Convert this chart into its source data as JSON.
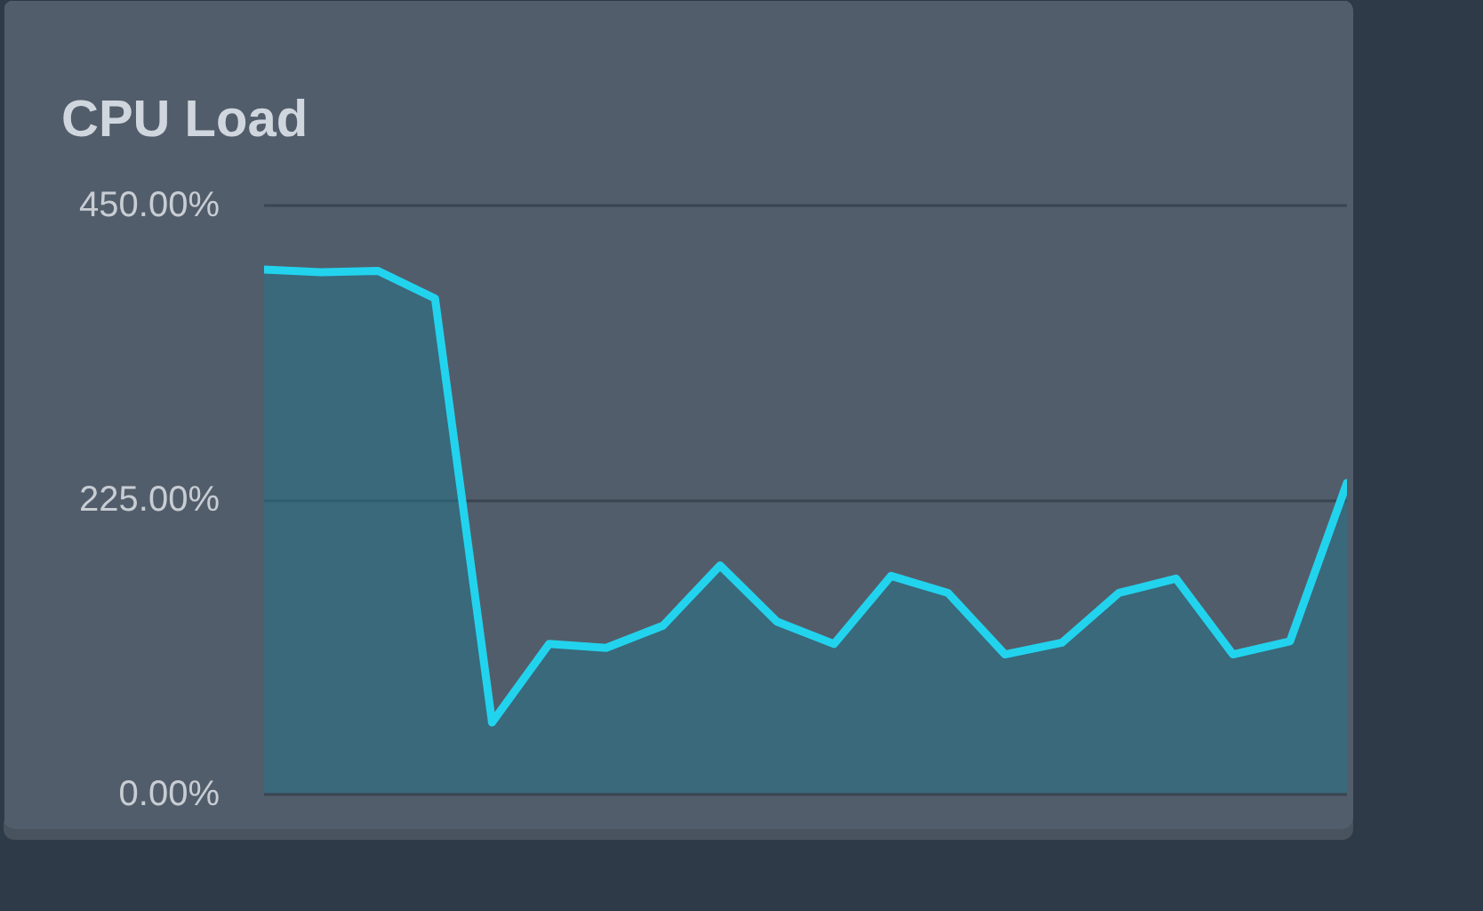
{
  "chart_data": {
    "type": "area",
    "title": "CPU Load",
    "categories": [
      null,
      null,
      null,
      null,
      null,
      null,
      null,
      null,
      null,
      null,
      null,
      null,
      null,
      null,
      null,
      null,
      null,
      null,
      null,
      null
    ],
    "series": [
      {
        "color": "#22d3ee",
        "values": [
          401,
          399,
          400,
          379,
          55,
          115,
          112,
          129,
          175,
          132,
          115,
          167,
          154,
          107,
          116,
          154,
          165,
          107,
          117,
          238
        ]
      }
    ],
    "ylim": [
      0,
      450
    ],
    "yticks": [
      {
        "value": 0,
        "label": "0.00%"
      },
      {
        "value": 225,
        "label": "225.00%"
      },
      {
        "value": 450,
        "label": "450.00%"
      }
    ],
    "grid": "y",
    "tick_labels": "y"
  }
}
